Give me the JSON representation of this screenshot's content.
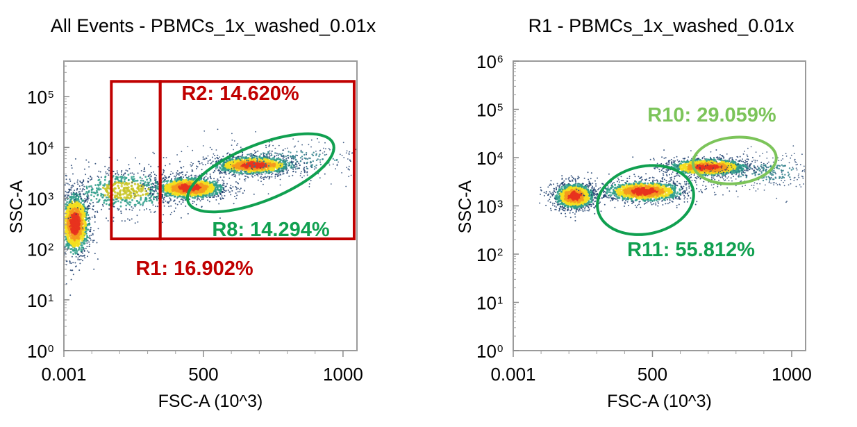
{
  "chart_data": [
    {
      "type": "scatter",
      "title": "All Events - PBMCs_1x_washed_0.01x",
      "xlabel": "FSC-A (10^3)",
      "ylabel": "SSC-A",
      "xlim": [
        0,
        1050
      ],
      "ylim_log10": [
        0,
        5.7
      ],
      "yscale": "log",
      "xticks": [
        {
          "value": 0.001,
          "label": "0.001"
        },
        {
          "value": 500,
          "label": "500"
        },
        {
          "value": 1000,
          "label": "1000"
        }
      ],
      "yticks": [
        {
          "exp": 0,
          "base": "10",
          "sup": "0"
        },
        {
          "exp": 1,
          "base": "10",
          "sup": "1"
        },
        {
          "exp": 2,
          "base": "10",
          "sup": "2"
        },
        {
          "exp": 3,
          "base": "10",
          "sup": "3"
        },
        {
          "exp": 4,
          "base": "10",
          "sup": "4"
        },
        {
          "exp": 5,
          "base": "10",
          "sup": "5"
        }
      ],
      "populations": [
        {
          "x_center": 40,
          "y_log_center": 2.5,
          "x_spread": 30,
          "y_spread": 0.35,
          "density": "high"
        },
        {
          "x_center": 220,
          "y_log_center": 3.15,
          "x_spread": 120,
          "y_spread": 0.25,
          "density": "medium"
        },
        {
          "x_center": 450,
          "y_log_center": 3.2,
          "x_spread": 70,
          "y_spread": 0.12,
          "density": "high"
        },
        {
          "x_center": 680,
          "y_log_center": 3.65,
          "x_spread": 80,
          "y_spread": 0.1,
          "density": "high"
        },
        {
          "x_center": 800,
          "y_log_center": 3.75,
          "x_spread": 200,
          "y_spread": 0.2,
          "density": "low"
        }
      ],
      "gates": [
        {
          "name": "R1",
          "label": "R1: 16.902%",
          "percent": 16.902,
          "shape": "rect",
          "color": "#c00000",
          "x_range": [
            170,
            345
          ],
          "y_log_range": [
            2.2,
            5.3
          ]
        },
        {
          "name": "R2",
          "label": "R2: 14.620%",
          "percent": 14.62,
          "shape": "rect",
          "color": "#c00000",
          "x_range": [
            345,
            1040
          ],
          "y_log_range": [
            2.2,
            5.3
          ]
        },
        {
          "name": "R8",
          "label": "R8: 14.294%",
          "percent": 14.294,
          "shape": "ellipse",
          "color": "#10a050",
          "x_center": 705,
          "y_log_center": 3.5,
          "x_radius": 280,
          "y_log_radius": 0.55,
          "angle_deg": -22
        }
      ]
    },
    {
      "type": "scatter",
      "title": "R1 - PBMCs_1x_washed_0.01x",
      "xlabel": "FSC-A (10^3)",
      "ylabel": "SSC-A",
      "xlim": [
        0,
        1050
      ],
      "ylim_log10": [
        0,
        6
      ],
      "yscale": "log",
      "xticks": [
        {
          "value": 0.001,
          "label": "0.001"
        },
        {
          "value": 500,
          "label": "500"
        },
        {
          "value": 1000,
          "label": "1000"
        }
      ],
      "yticks": [
        {
          "exp": 0,
          "base": "10",
          "sup": "0"
        },
        {
          "exp": 1,
          "base": "10",
          "sup": "1"
        },
        {
          "exp": 2,
          "base": "10",
          "sup": "2"
        },
        {
          "exp": 3,
          "base": "10",
          "sup": "3"
        },
        {
          "exp": 4,
          "base": "10",
          "sup": "4"
        },
        {
          "exp": 5,
          "base": "10",
          "sup": "5"
        },
        {
          "exp": 6,
          "base": "10",
          "sup": "6"
        }
      ],
      "populations": [
        {
          "x_center": 220,
          "y_log_center": 3.2,
          "x_spread": 40,
          "y_spread": 0.15,
          "density": "high"
        },
        {
          "x_center": 470,
          "y_log_center": 3.3,
          "x_spread": 80,
          "y_spread": 0.12,
          "density": "high"
        },
        {
          "x_center": 700,
          "y_log_center": 3.8,
          "x_spread": 80,
          "y_spread": 0.1,
          "density": "high"
        },
        {
          "x_center": 900,
          "y_log_center": 3.7,
          "x_spread": 130,
          "y_spread": 0.2,
          "density": "low"
        }
      ],
      "gates": [
        {
          "name": "R10",
          "label": "R10: 29.059%",
          "percent": 29.059,
          "shape": "ellipse",
          "color": "#7cc45a",
          "x_center": 795,
          "y_log_center": 3.94,
          "x_radius": 150,
          "y_log_radius": 0.48,
          "angle_deg": -5
        },
        {
          "name": "R11",
          "label": "R11: 55.812%",
          "percent": 55.812,
          "shape": "ellipse",
          "color": "#10a050",
          "x_center": 475,
          "y_log_center": 3.12,
          "x_radius": 175,
          "y_log_radius": 0.7,
          "angle_deg": -12
        }
      ]
    }
  ]
}
